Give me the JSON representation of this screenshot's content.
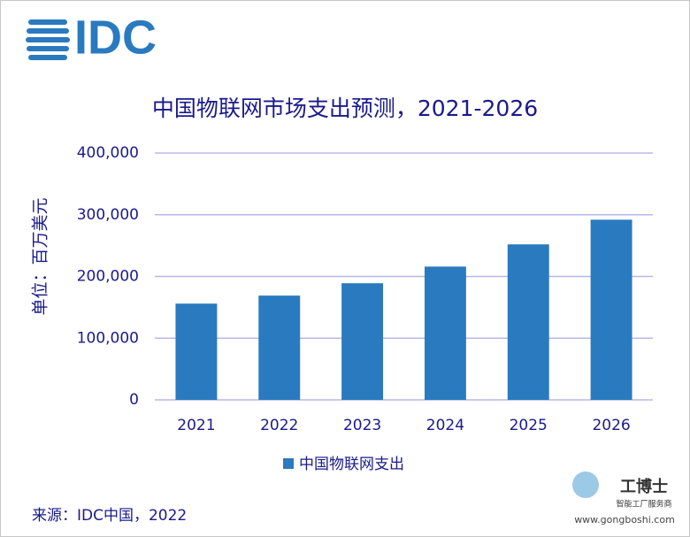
{
  "logo": "IDC",
  "chart_data": {
    "type": "bar",
    "title": "中国物联网市场支出预测，2021-2026",
    "y_label": "单位：百万美元",
    "categories": [
      "2021",
      "2022",
      "2023",
      "2024",
      "2025",
      "2026"
    ],
    "series": [
      {
        "name": "中国物联网支出",
        "color": "#2a7abf",
        "values": [
          156000,
          169000,
          189000,
          216000,
          252000,
          292000
        ]
      }
    ],
    "ylim": [
      0,
      400000
    ],
    "yticks": [
      0,
      {
        "value": 100000,
        "label": "100,000"
      },
      {
        "value": 200000,
        "label": "200,000"
      },
      {
        "value": 300000,
        "label": "300,000"
      },
      {
        "value": 400000,
        "label": "400,000"
      }
    ],
    "grid": true,
    "legend": "bottom"
  },
  "source": "来源：IDC中国，2022",
  "watermark": {
    "brand": "工博士",
    "tagline": "智能工厂服务商",
    "url": "www.gongboshi.com"
  }
}
